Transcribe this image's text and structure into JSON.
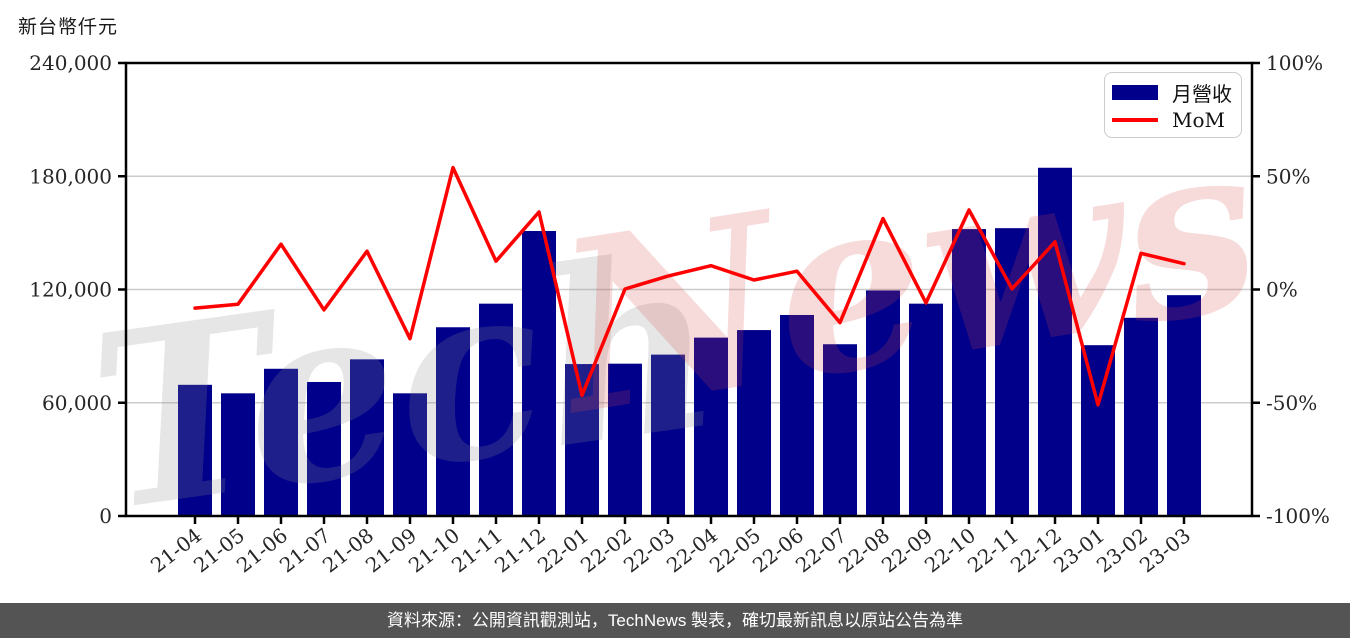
{
  "page": {
    "unit_label": "新台幣仟元",
    "footer_text": "資料來源：公開資訊觀測站，TechNews 製表，確切最新訊息以原站公告為準"
  },
  "legend": {
    "bar_label": "月營收",
    "line_label": "MoM"
  },
  "watermark": {
    "text_left": "Tech",
    "text_right": "News"
  },
  "colors": {
    "bar": "#00008B",
    "line": "#FF0000",
    "grid": "#cccccc",
    "axis": "#000000",
    "tick_label": "#262626",
    "footer_bg": "#545454",
    "watermark_gray": "rgba(140,140,140,0.22)",
    "watermark_pink": "rgba(214,70,70,0.20)"
  },
  "chart_data": {
    "type": "bar",
    "title": "",
    "xlabel": "",
    "ylabel_left": "新台幣仟元",
    "ylabel_right": "%",
    "grid": true,
    "legend_position": "upper-right",
    "categories": [
      "21-04",
      "21-05",
      "21-06",
      "21-07",
      "21-08",
      "21-09",
      "21-10",
      "21-11",
      "21-12",
      "22-01",
      "22-02",
      "22-03",
      "22-04",
      "22-05",
      "22-06",
      "22-07",
      "22-08",
      "22-09",
      "22-10",
      "22-11",
      "22-12",
      "23-01",
      "23-02",
      "23-03"
    ],
    "series": [
      {
        "name": "月營收",
        "type": "bar",
        "axis": "left",
        "unit": "新台幣仟元",
        "values": [
          69500,
          65000,
          78000,
          71000,
          83000,
          65000,
          100000,
          112500,
          151000,
          80500,
          80700,
          85500,
          94500,
          98500,
          106500,
          91000,
          119500,
          112500,
          152000,
          152500,
          184500,
          90500,
          105000,
          117000
        ]
      },
      {
        "name": "MoM",
        "type": "line",
        "axis": "right",
        "unit": "%",
        "values": [
          -8.2,
          -6.5,
          20.0,
          -9.0,
          16.9,
          -21.7,
          53.8,
          12.5,
          34.2,
          -46.7,
          0.2,
          5.9,
          10.5,
          4.2,
          8.1,
          -14.6,
          31.3,
          -5.9,
          35.1,
          0.3,
          21.0,
          -50.9,
          16.0,
          11.4
        ]
      }
    ],
    "left_axis": {
      "range": [
        0,
        240000
      ],
      "ticks": [
        0,
        60000,
        120000,
        180000,
        240000
      ],
      "tick_labels": [
        "0",
        "60,000",
        "120,000",
        "180,000",
        "240,000"
      ]
    },
    "right_axis": {
      "range": [
        -100,
        100
      ],
      "ticks": [
        -100,
        -50,
        0,
        50,
        100
      ],
      "tick_labels": [
        "-100%",
        "-50%",
        "0%",
        "50%",
        "100%"
      ]
    }
  }
}
